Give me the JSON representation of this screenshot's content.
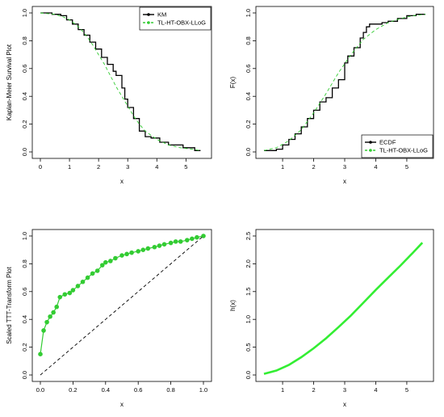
{
  "chart_data": [
    {
      "type": "line",
      "xlabel": "x",
      "ylabel": "Kaplan-Meier Survival Plot",
      "xlim": [
        0,
        5.6
      ],
      "ylim": [
        0,
        1.0
      ],
      "xticks": [
        "0",
        "1",
        "2",
        "3",
        "4",
        "5"
      ],
      "yticks": [
        "0.0",
        "0.2",
        "0.4",
        "0.6",
        "0.8",
        "1.0"
      ],
      "legend_position": "top-right",
      "series": [
        {
          "name": "KM",
          "style": "step",
          "color": "#000000",
          "x": [
            0.0,
            0.4,
            0.7,
            0.9,
            1.1,
            1.3,
            1.5,
            1.7,
            1.9,
            2.1,
            2.3,
            2.5,
            2.6,
            2.8,
            2.9,
            3.0,
            3.2,
            3.4,
            3.6,
            3.8,
            4.1,
            4.4,
            4.9,
            5.3,
            5.5
          ],
          "y": [
            1.0,
            0.99,
            0.98,
            0.95,
            0.92,
            0.88,
            0.84,
            0.79,
            0.74,
            0.68,
            0.63,
            0.58,
            0.55,
            0.46,
            0.38,
            0.32,
            0.24,
            0.15,
            0.11,
            0.1,
            0.07,
            0.05,
            0.03,
            0.01,
            0.01
          ]
        },
        {
          "name": "TL-HT-OBX-LLoG",
          "style": "dashed",
          "color": "#33cc33",
          "x": [
            0.0,
            0.5,
            0.8,
            1.0,
            1.2,
            1.4,
            1.6,
            1.8,
            2.0,
            2.2,
            2.4,
            2.6,
            2.8,
            3.0,
            3.2,
            3.4,
            3.6,
            3.8,
            4.0,
            4.4,
            4.8,
            5.2,
            5.5
          ],
          "y": [
            1.0,
            0.99,
            0.97,
            0.95,
            0.92,
            0.88,
            0.83,
            0.77,
            0.7,
            0.63,
            0.55,
            0.47,
            0.4,
            0.33,
            0.26,
            0.2,
            0.15,
            0.12,
            0.09,
            0.05,
            0.03,
            0.02,
            0.01
          ]
        }
      ]
    },
    {
      "type": "line",
      "xlabel": "x",
      "ylabel": "F(x)",
      "xlim": [
        0.4,
        5.6
      ],
      "ylim": [
        0,
        1.0
      ],
      "xticks": [
        "1",
        "2",
        "3",
        "4",
        "5"
      ],
      "yticks": [
        "0.0",
        "0.2",
        "0.4",
        "0.6",
        "0.8",
        "1.0"
      ],
      "legend_position": "bottom-right",
      "series": [
        {
          "name": "ECDF",
          "style": "step",
          "color": "#000000",
          "x": [
            0.4,
            0.8,
            1.0,
            1.2,
            1.4,
            1.6,
            1.8,
            2.0,
            2.2,
            2.4,
            2.6,
            2.8,
            3.0,
            3.1,
            3.3,
            3.5,
            3.6,
            3.7,
            3.8,
            4.0,
            4.2,
            4.4,
            4.7,
            5.0,
            5.3,
            5.6
          ],
          "y": [
            0.01,
            0.02,
            0.05,
            0.09,
            0.13,
            0.18,
            0.24,
            0.3,
            0.36,
            0.39,
            0.46,
            0.52,
            0.64,
            0.69,
            0.75,
            0.82,
            0.86,
            0.9,
            0.92,
            0.92,
            0.93,
            0.94,
            0.96,
            0.98,
            0.99,
            0.99
          ]
        },
        {
          "name": "TL-HT-OBX-LLoG",
          "style": "dashed",
          "color": "#33cc33",
          "x": [
            0.4,
            0.8,
            1.2,
            1.6,
            2.0,
            2.4,
            2.8,
            3.2,
            3.6,
            4.0,
            4.4,
            4.8,
            5.2,
            5.6
          ],
          "y": [
            0.01,
            0.03,
            0.08,
            0.16,
            0.28,
            0.42,
            0.57,
            0.7,
            0.81,
            0.88,
            0.93,
            0.96,
            0.98,
            0.99
          ]
        }
      ]
    },
    {
      "type": "line",
      "xlabel": "x",
      "ylabel": "Scaled TTT-Transform Plot",
      "xlim": [
        0,
        1.0
      ],
      "ylim": [
        0,
        1.0
      ],
      "xticks": [
        "0.0",
        "0.2",
        "0.4",
        "0.6",
        "0.8",
        "1.0"
      ],
      "yticks": [
        "0.0",
        "0.2",
        "0.4",
        "0.6",
        "0.8",
        "1.0"
      ],
      "series": [
        {
          "name": "",
          "style": "markers-line",
          "color": "#33cc33",
          "x": [
            0.0,
            0.02,
            0.04,
            0.06,
            0.08,
            0.1,
            0.12,
            0.15,
            0.18,
            0.2,
            0.23,
            0.26,
            0.29,
            0.32,
            0.35,
            0.38,
            0.4,
            0.43,
            0.46,
            0.5,
            0.53,
            0.56,
            0.6,
            0.63,
            0.66,
            0.7,
            0.73,
            0.76,
            0.8,
            0.83,
            0.86,
            0.9,
            0.93,
            0.96,
            1.0
          ],
          "y": [
            0.15,
            0.32,
            0.38,
            0.42,
            0.45,
            0.49,
            0.56,
            0.58,
            0.59,
            0.61,
            0.64,
            0.67,
            0.7,
            0.73,
            0.75,
            0.79,
            0.81,
            0.82,
            0.84,
            0.86,
            0.87,
            0.88,
            0.89,
            0.9,
            0.91,
            0.92,
            0.93,
            0.94,
            0.95,
            0.96,
            0.96,
            0.97,
            0.98,
            0.99,
            1.0
          ]
        },
        {
          "name": "",
          "style": "dashed",
          "color": "#000000",
          "x": [
            0,
            1
          ],
          "y": [
            0,
            1
          ]
        }
      ]
    },
    {
      "type": "line",
      "xlabel": "x",
      "ylabel": "h(x)",
      "xlim": [
        0.4,
        5.6
      ],
      "ylim": [
        0,
        2.5
      ],
      "xticks": [
        "1",
        "2",
        "3",
        "4",
        "5"
      ],
      "yticks": [
        "0.0",
        "0.5",
        "1.0",
        "1.5",
        "2.0",
        "2.5"
      ],
      "series": [
        {
          "name": "",
          "style": "solid",
          "color": "#33ee33",
          "x": [
            0.4,
            0.8,
            1.2,
            1.6,
            2.0,
            2.4,
            2.8,
            3.2,
            3.6,
            4.0,
            4.4,
            4.8,
            5.2,
            5.5
          ],
          "y": [
            0.02,
            0.08,
            0.18,
            0.32,
            0.48,
            0.66,
            0.86,
            1.07,
            1.3,
            1.53,
            1.75,
            1.97,
            2.2,
            2.38
          ]
        }
      ]
    }
  ]
}
